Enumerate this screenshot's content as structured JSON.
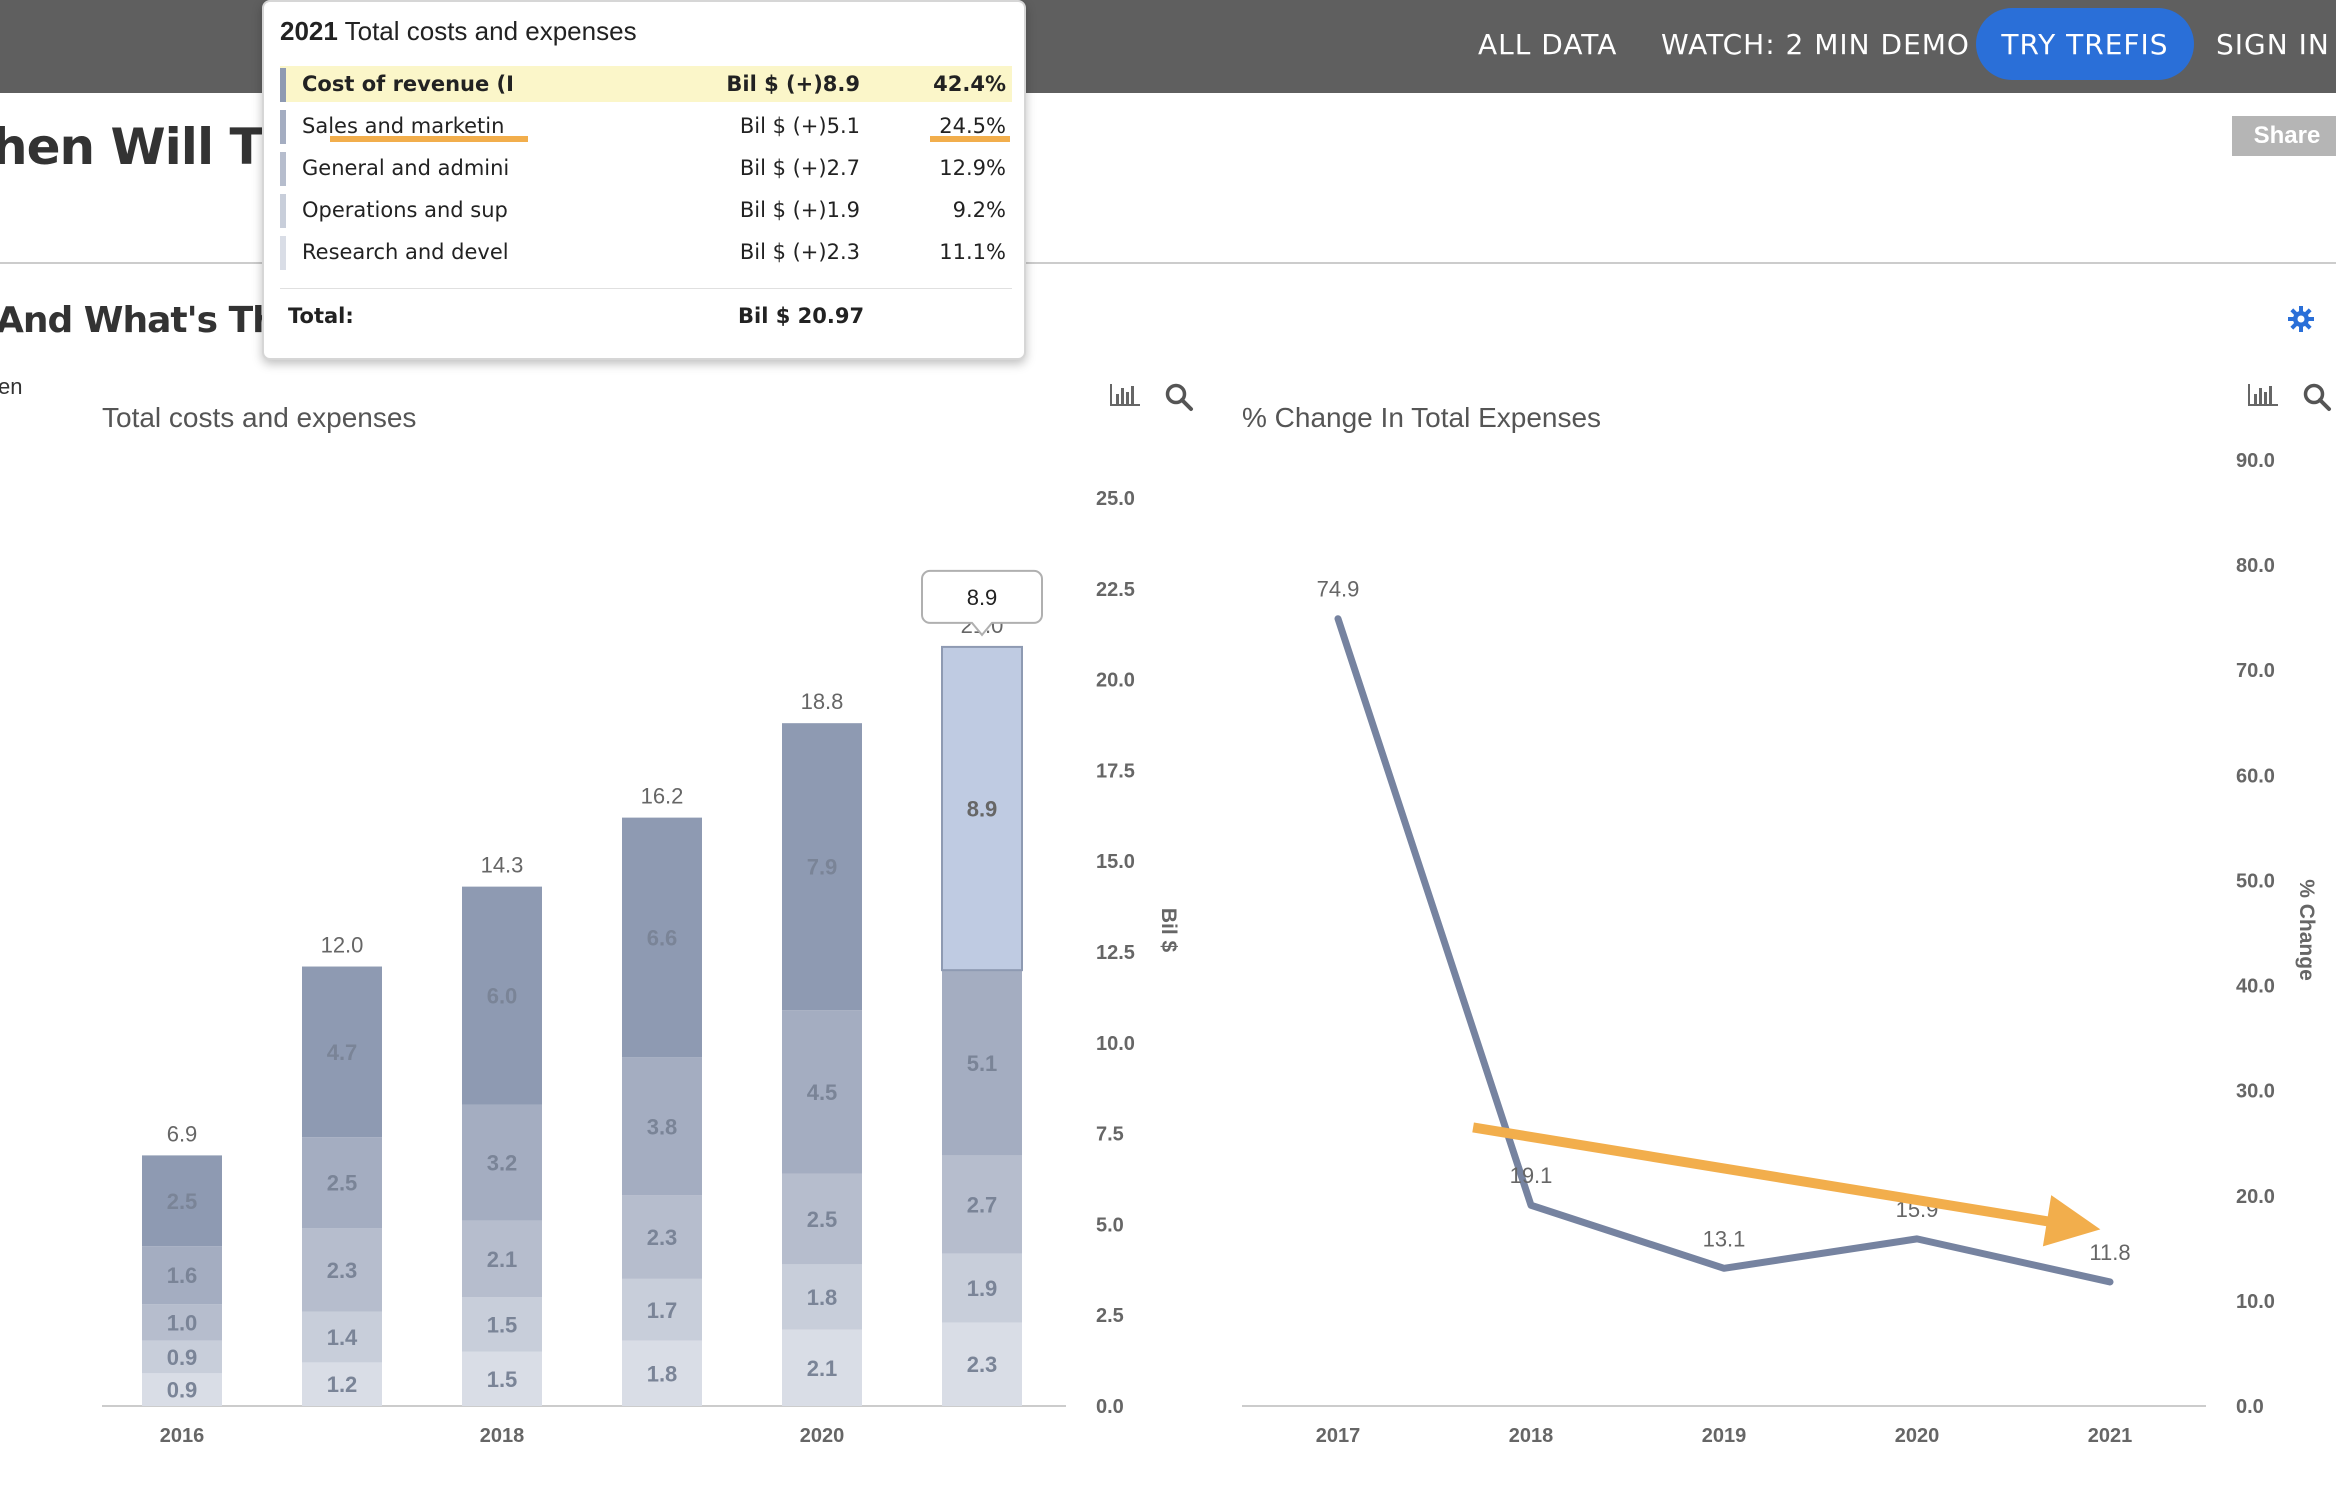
{
  "nav": {
    "all_data": "ALL DATA",
    "watch_demo": "WATCH: 2 MIN DEMO",
    "try_trefis": "TRY TREFIS",
    "sign_in": "SIGN IN"
  },
  "page": {
    "title": "hen Will The",
    "subtitle": "And What's The C",
    "stub_text": "en",
    "share_label": "Share"
  },
  "tooltip": {
    "year": "2021",
    "title": "Total costs and expenses",
    "rows": [
      {
        "name": "Cost of revenue (I",
        "value": "Bil $ (+)8.9",
        "pct": "42.4%"
      },
      {
        "name": "Sales and marketin",
        "value": "Bil $ (+)5.1",
        "pct": "24.5%"
      },
      {
        "name": "General and admini",
        "value": "Bil $ (+)2.7",
        "pct": "12.9%"
      },
      {
        "name": "Operations and sup",
        "value": "Bil $ (+)1.9",
        "pct": "9.2%"
      },
      {
        "name": "Research and devel",
        "value": "Bil $ (+)2.3",
        "pct": "11.1%"
      }
    ],
    "total_label": "Total:",
    "total_value": "Bil $ 20.97"
  },
  "colors": {
    "top_bar": "#5f5f5f",
    "accent_blue": "#2a6fd8",
    "highlight_orange": "#f2ae4c",
    "line_series": "#7683a0",
    "bar_selected_top": "#bfcbe2"
  },
  "chart_data": [
    {
      "type": "bar",
      "stacked": true,
      "title": "Total costs and expenses",
      "ylabel": "Bil $",
      "ylim": [
        0,
        25
      ],
      "yticks": [
        "0.0",
        "2.5",
        "5.0",
        "7.5",
        "10.0",
        "12.5",
        "15.0",
        "17.5",
        "20.0",
        "22.5",
        "25.0"
      ],
      "categories": [
        "2016",
        "2017",
        "2018",
        "2019",
        "2020",
        "2021"
      ],
      "xtick_labels": [
        "2016",
        "",
        "2018",
        "",
        "2020",
        ""
      ],
      "totals": [
        "6.9",
        "12.0",
        "14.3",
        "16.2",
        "18.8",
        "21.0"
      ],
      "series": [
        {
          "name": "Research and devel",
          "color": "#d9dde6",
          "values": [
            0.9,
            1.2,
            1.5,
            1.8,
            2.1,
            2.3
          ]
        },
        {
          "name": "Operations and sup",
          "color": "#c8ceda",
          "values": [
            0.9,
            1.4,
            1.5,
            1.7,
            1.8,
            1.9
          ]
        },
        {
          "name": "General and admini",
          "color": "#b6bdcd",
          "values": [
            1.0,
            2.3,
            2.1,
            2.3,
            2.5,
            2.7
          ]
        },
        {
          "name": "Sales and marketin",
          "color": "#a4adc1",
          "values": [
            1.6,
            2.5,
            3.2,
            3.8,
            4.5,
            5.1
          ]
        },
        {
          "name": "Cost of revenue (I",
          "color": "#8e9ab2",
          "values": [
            2.5,
            4.7,
            6.0,
            6.6,
            7.9,
            8.9
          ]
        }
      ],
      "selected": {
        "category": "2021",
        "series": "Cost of revenue (I",
        "label": "8.9"
      }
    },
    {
      "type": "line",
      "title": "% Change In Total Expenses",
      "ylabel": "% Change",
      "ylim": [
        0,
        90
      ],
      "yticks": [
        "0.0",
        "10.0",
        "20.0",
        "30.0",
        "40.0",
        "50.0",
        "60.0",
        "70.0",
        "80.0",
        "90.0"
      ],
      "x": [
        "2017",
        "2018",
        "2019",
        "2020",
        "2021"
      ],
      "y": [
        74.9,
        19.1,
        13.1,
        15.9,
        11.8
      ],
      "labels": [
        "74.9",
        "19.1",
        "13.1",
        "15.9",
        "11.8"
      ],
      "trend_arrow": {
        "color": "#f2ae4c",
        "direction": "down"
      }
    }
  ]
}
